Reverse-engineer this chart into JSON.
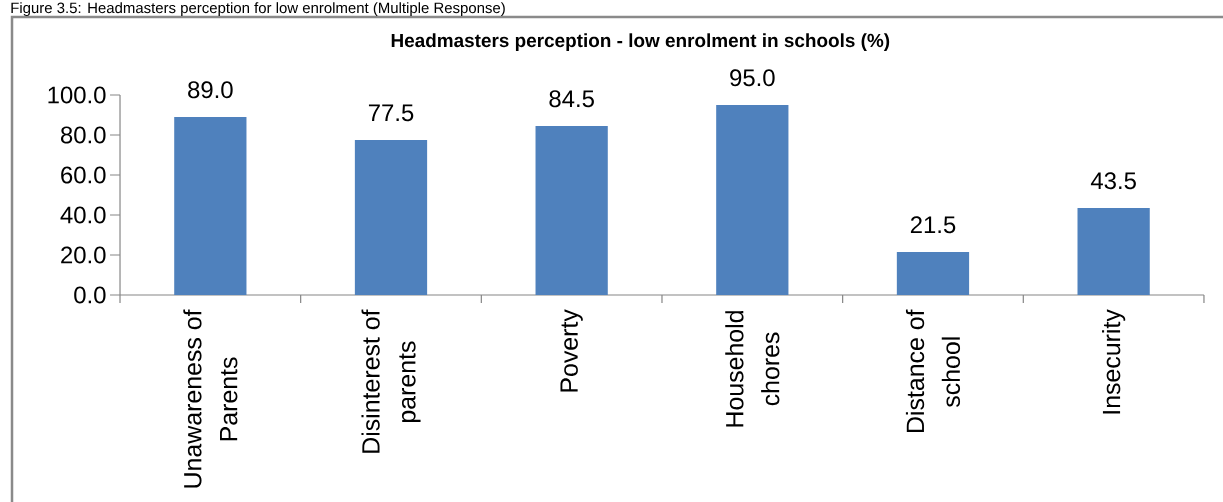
{
  "chart_data": {
    "type": "bar",
    "title": "Headmasters perception - low enrolment in schools (%)",
    "annotations": [
      "Figure 3.5: Headmasters perception for low enrolment (Multiple Response)"
    ],
    "categories": [
      "Unawareness of Parents",
      "Disinterest of parents",
      "Poverty",
      "Household chores",
      "Distance of school",
      "Insecurity"
    ],
    "values": [
      89.0,
      77.5,
      84.5,
      95.0,
      21.5,
      43.5
    ],
    "value_labels": [
      "89.0",
      "77.5",
      "84.5",
      "95.0",
      "21.5",
      "43.5"
    ],
    "color": "#4f81bd",
    "ylim": [
      0,
      100
    ],
    "yticks": [
      {
        "value": 0,
        "label": "0.0"
      },
      {
        "value": 20,
        "label": "20.0"
      },
      {
        "value": 40,
        "label": "40.0"
      },
      {
        "value": 60,
        "label": "60.0"
      },
      {
        "value": 80,
        "label": "80.0"
      },
      {
        "value": 100,
        "label": "100.0"
      }
    ]
  }
}
